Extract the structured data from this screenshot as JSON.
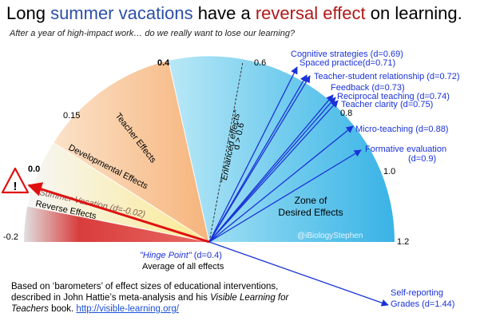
{
  "title": {
    "part1": "Long ",
    "part2": "summer vacations",
    "part3": " have a ",
    "part4": "reversal effect",
    "part5": " on learning."
  },
  "subtitle": "After a year of high-impact work… do we really want to lose our learning?",
  "scale": {
    "labels": {
      "neg02": "-0.2",
      "zero": "0.0",
      "p015": "0.15",
      "p04": "0.4",
      "p06": "0.6",
      "p08": "0.8",
      "p10": "1.0",
      "p12": "1.2"
    }
  },
  "zones": {
    "reverse": "Reverse Effects",
    "summer": "Summer Vacation (d=-0.02)",
    "developmental": "Developmental  Effects",
    "teacher": "Teacher  Effects",
    "enhanced": "\"Enhanced effects\"",
    "enhanced_sub": "d > 0.6",
    "desired_line1": "Zone of",
    "desired_line2": "Desired Effects"
  },
  "hinge": {
    "line1_italic": "\"Hinge Point\"",
    "line1_rest": " (d=0.4)",
    "line2": "Average of all effects"
  },
  "watermark": "@iBiologyStephen",
  "warning_icon": "warning-triangle-icon",
  "effects": [
    {
      "label": "Cognitive strategies (d=0.69)"
    },
    {
      "label": "Spaced practice(d=0.71)"
    },
    {
      "label": "Teacher-student relationship (d=0.72)"
    },
    {
      "label": "Feedback (d=0.73)"
    },
    {
      "label": "Reciprocal teaching (d=0.74)"
    },
    {
      "label": "Teacher clarity (d=0.75)"
    },
    {
      "label": "Micro-teaching (d=0.88)"
    },
    {
      "label": "Formative evaluation"
    },
    {
      "label": "(d=0.9)"
    },
    {
      "label": "Self-reporting"
    },
    {
      "label": "Grades (d=1.44)"
    }
  ],
  "footnote": {
    "text1": "Based on ‘barometers’ of effect sizes of educational interventions, described in John Hattie’s meta-analysis and his ",
    "italic": "Visible Learning for Teachers",
    "text2": " book. ",
    "link": "http://visible-learning.org/"
  },
  "colors": {
    "reverse": "#e03c3c",
    "developmental": "#fbeea0",
    "teacher": "#f9c598",
    "desired": "#7fd3ef",
    "arrow": "#1a32d8",
    "summer_arrow": "#e01010",
    "title_blue": "#2b4fa8",
    "title_red": "#b01818"
  }
}
